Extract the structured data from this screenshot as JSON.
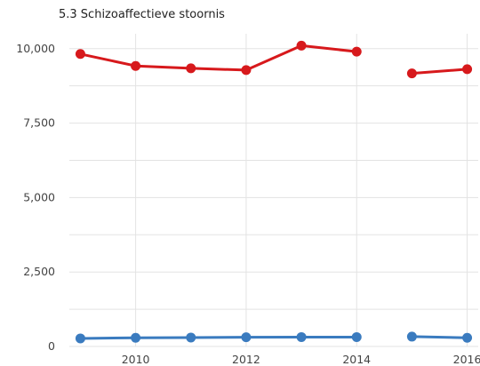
{
  "chart_data": {
    "type": "line",
    "title": "5.3 Schizoaffectieve stoornis",
    "xlabel": "",
    "ylabel": "",
    "x": [
      2009,
      2010,
      2011,
      2012,
      2013,
      2014,
      2015,
      2016
    ],
    "x_ticks": [
      "2010",
      "2012",
      "2014",
      "2016"
    ],
    "y_ticks": [
      "0",
      "2,500",
      "5,000",
      "7,500",
      "10,000"
    ],
    "y_tick_values": [
      0,
      2500,
      5000,
      7500,
      10000
    ],
    "xlim": [
      2008.8,
      2016.2
    ],
    "ylim": [
      0,
      10500
    ],
    "grid": true,
    "legend": "none",
    "series": [
      {
        "color": "#d7191c",
        "values": [
          9820,
          9420,
          9340,
          9280,
          10100,
          9900,
          9170,
          9310
        ],
        "segments": [
          [
            0,
            5
          ],
          [
            6,
            7
          ]
        ]
      },
      {
        "color": "#3a7bbf",
        "values": [
          270,
          290,
          300,
          310,
          315,
          315,
          330,
          290
        ],
        "segments": [
          [
            0,
            5
          ],
          [
            6,
            7
          ]
        ]
      }
    ]
  }
}
